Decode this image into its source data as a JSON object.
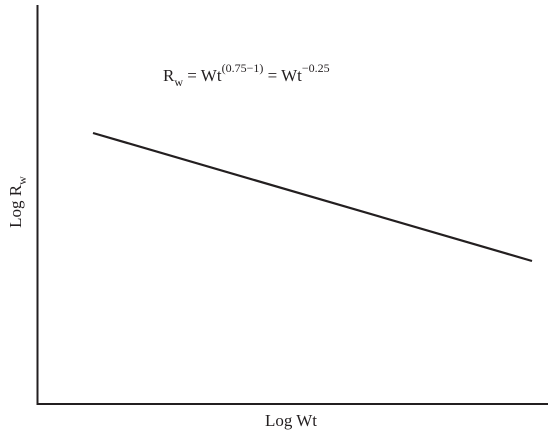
{
  "chart_data": {
    "type": "line",
    "title": "",
    "xlabel": "Log Wt",
    "ylabel_main": "Log R",
    "ylabel_sub": "w",
    "xscale": "log",
    "yscale": "log",
    "ticks": "none",
    "grid": false,
    "annotation": {
      "r_main": "R",
      "r_sub": "w",
      "eq1": " = Wt",
      "exp1": "(0.75−1)",
      "eq2": " = Wt",
      "exp2": "−0.25"
    },
    "series": [
      {
        "slope": -0.25
      }
    ],
    "colors": {
      "line": "#231f20",
      "axis": "#231f20"
    }
  }
}
